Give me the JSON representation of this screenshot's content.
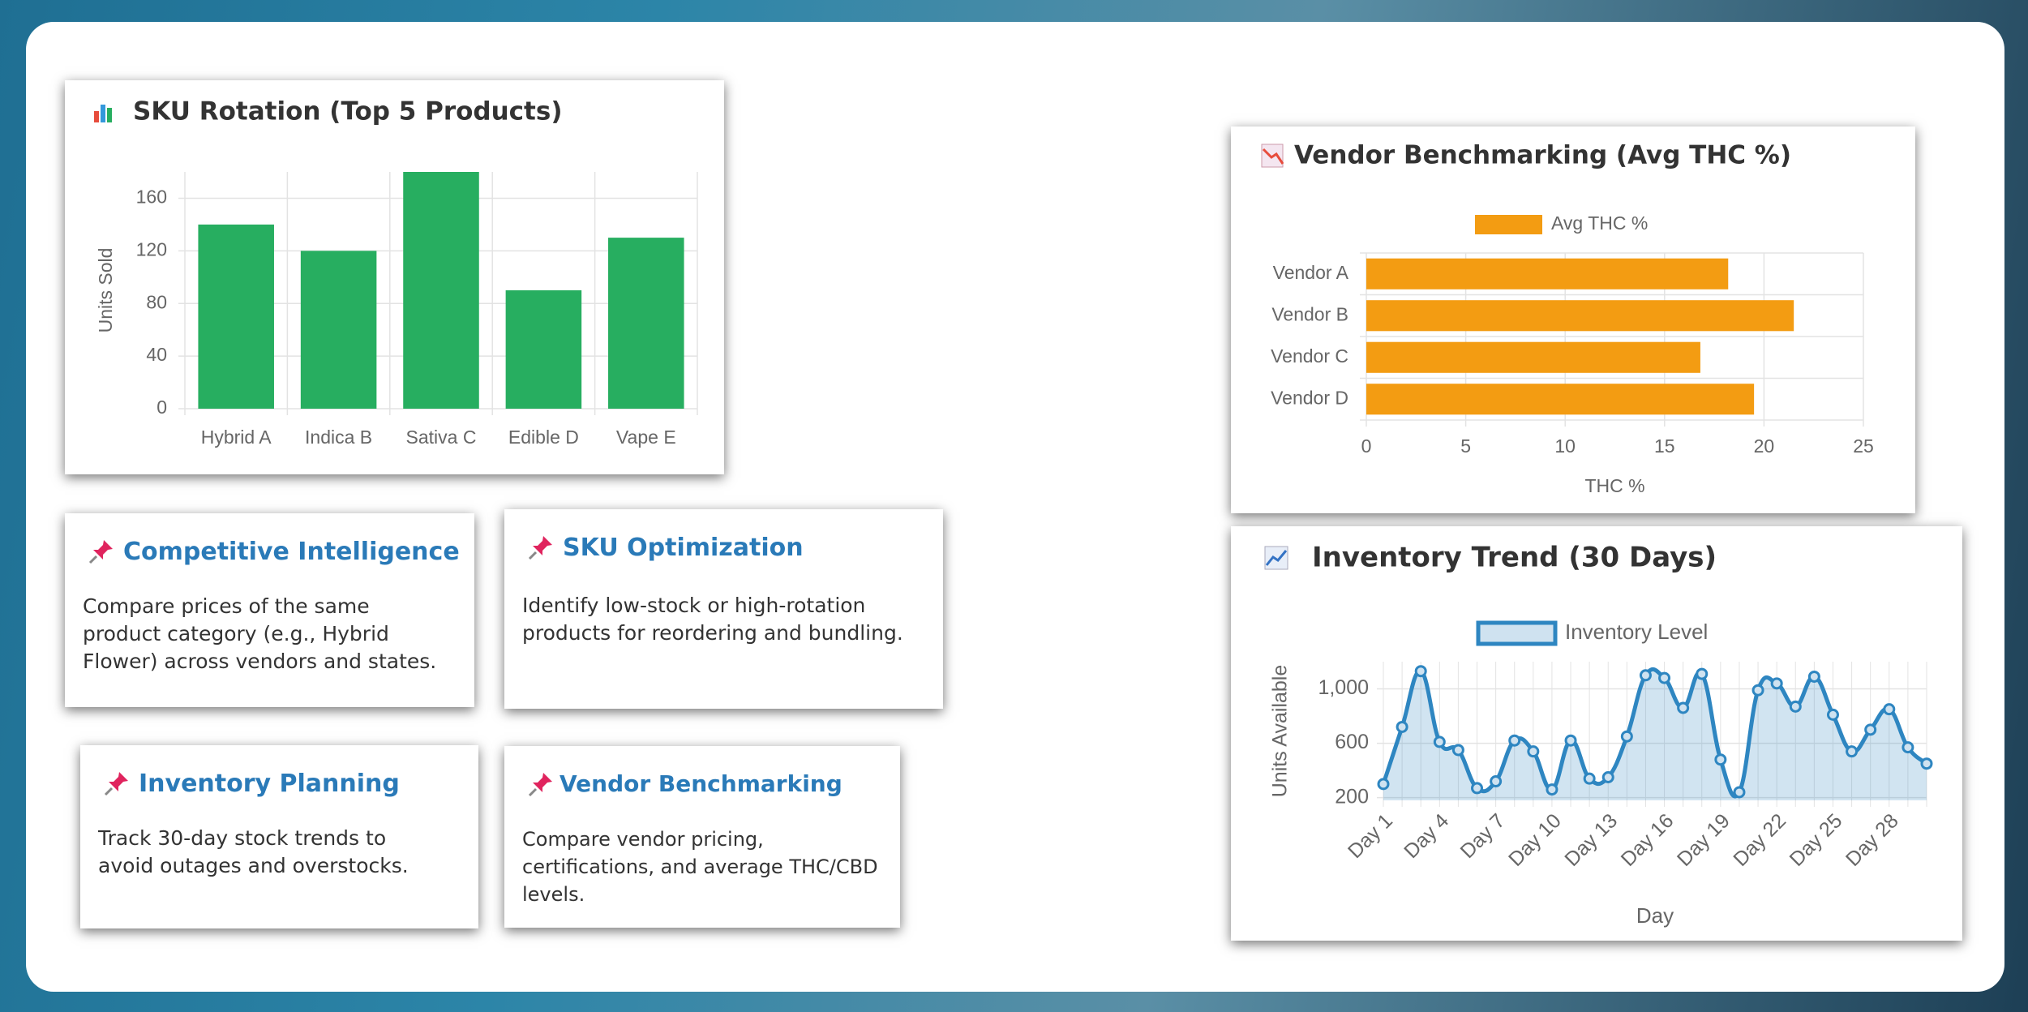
{
  "chart_data": [
    {
      "type": "bar",
      "title": "SKU Rotation (Top 5 Products)",
      "y_label": "Units Sold",
      "categories": [
        "Hybrid A",
        "Indica B",
        "Sativa C",
        "Edible D",
        "Vape E"
      ],
      "values": [
        140,
        120,
        180,
        90,
        130
      ],
      "color": "#27ae60",
      "ylim": [
        0,
        180
      ],
      "yticks": [
        0,
        40,
        80,
        120,
        160
      ],
      "grid": true
    },
    {
      "type": "bar",
      "orientation": "horizontal",
      "title": "Vendor Benchmarking (Avg THC %)",
      "x_label": "THC %",
      "categories": [
        "Vendor A",
        "Vendor B",
        "Vendor C",
        "Vendor D"
      ],
      "series": [
        {
          "name": "Avg THC %",
          "color": "#f39c12",
          "values": [
            18.2,
            21.5,
            16.8,
            19.5
          ]
        }
      ],
      "xlim": [
        0,
        25
      ],
      "xticks": [
        0,
        5,
        10,
        15,
        20,
        25
      ],
      "grid": true,
      "legend": "top"
    },
    {
      "type": "line",
      "title": "Inventory Trend (30 Days)",
      "x_label": "Day",
      "y_label": "Units Available",
      "categories": [
        "Day 1",
        null,
        null,
        "Day 4",
        null,
        null,
        "Day 7",
        null,
        null,
        "Day 10",
        null,
        null,
        "Day 13",
        null,
        null,
        "Day 16",
        null,
        null,
        "Day 19",
        null,
        null,
        "Day 22",
        null,
        null,
        "Day 25",
        null,
        null,
        "Day 28",
        null,
        null
      ],
      "series": [
        {
          "name": "Inventory Level",
          "color": "#2e86c1",
          "fill": true,
          "values": [
            300,
            720,
            1130,
            610,
            550,
            270,
            320,
            620,
            540,
            260,
            620,
            340,
            350,
            650,
            1100,
            1080,
            860,
            1110,
            480,
            240,
            990,
            1040,
            870,
            1090,
            810,
            540,
            700,
            850,
            570,
            450
          ]
        }
      ],
      "ylim": [
        180,
        1200
      ],
      "yticks": [
        200,
        600,
        {
          "value": 1000,
          "label": "1,000"
        }
      ],
      "grid": true,
      "legend": "top"
    }
  ],
  "cards": [
    {
      "title": "Competitive Intelligence",
      "text": "Compare prices of the same product category (e.g., Hybrid Flower) across vendors and states."
    },
    {
      "title": "SKU Optimization",
      "text": "Identify low-stock or high-rotation products for reordering and bundling."
    },
    {
      "title": "Inventory Planning",
      "text": "Track 30-day stock trends to avoid outages and overstocks."
    },
    {
      "title": "Vendor Benchmarking",
      "text": "Compare vendor pricing, certifications, and average THC/CBD levels."
    }
  ]
}
